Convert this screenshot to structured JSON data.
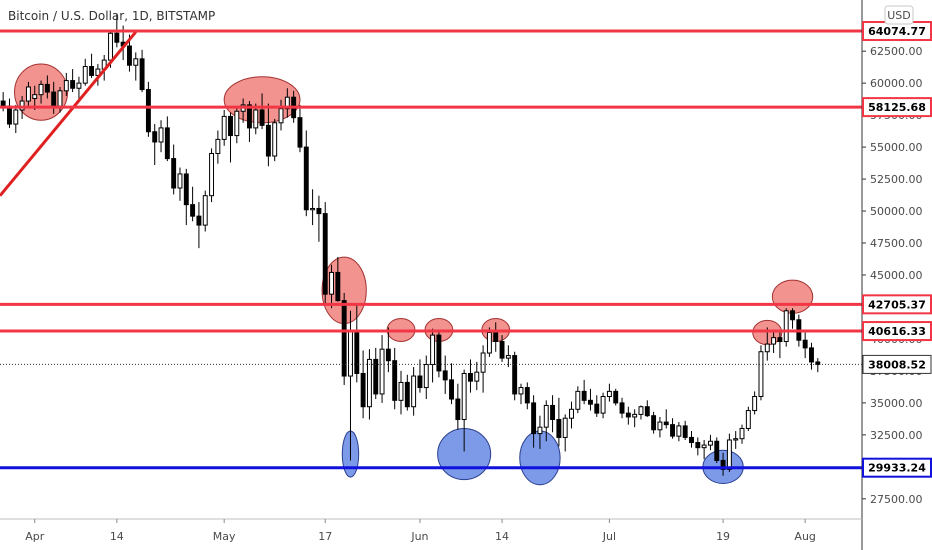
{
  "header": {
    "title": "Bitcoin / U.S. Dollar, 1D, BITSTAMP",
    "currency_button": "USD"
  },
  "chart_data": {
    "type": "candlestick",
    "title": "Bitcoin / U.S. Dollar, 1D, BITSTAMP",
    "ylim": [
      26000,
      66500
    ],
    "y_ticks": [
      27500,
      30000,
      32500,
      35000,
      37500,
      40000,
      42500,
      45000,
      47500,
      50000,
      52500,
      55000,
      57500,
      60000,
      62500
    ],
    "y_tick_labels": [
      "27500.00",
      "30000.00",
      "32500.00",
      "35000.00",
      "37500.00",
      "40000.00",
      "42500.00",
      "45000.00",
      "47500.00",
      "50000.00",
      "52500.00",
      "55000.00",
      "57500.00",
      "60000.00",
      "62500.00"
    ],
    "x_ticks": [
      {
        "label": "Apr",
        "day": 0
      },
      {
        "label": "14",
        "day": 13
      },
      {
        "label": "May",
        "day": 30
      },
      {
        "label": "17",
        "day": 46
      },
      {
        "label": "Jun",
        "day": 61
      },
      {
        "label": "14",
        "day": 74
      },
      {
        "label": "Jul",
        "day": 91
      },
      {
        "label": "19",
        "day": 109
      },
      {
        "label": "Aug",
        "day": 122
      }
    ],
    "x_range": [
      -5.5,
      131
    ],
    "candles": [
      [
        -5,
        58600,
        59300,
        57800,
        58200
      ],
      [
        -4,
        58200,
        58800,
        56500,
        56800
      ],
      [
        -3,
        56800,
        58300,
        56100,
        57900
      ],
      [
        -2,
        57900,
        59000,
        57200,
        58600
      ],
      [
        -1,
        58600,
        60100,
        58100,
        59700
      ],
      [
        0,
        58800,
        59800,
        57900,
        59100
      ],
      [
        1,
        59100,
        60200,
        58400,
        59900
      ],
      [
        2,
        59900,
        60600,
        58800,
        59300
      ],
      [
        3,
        59300,
        60100,
        57600,
        58200
      ],
      [
        4,
        58200,
        59700,
        57700,
        59400
      ],
      [
        5,
        59400,
        60800,
        59000,
        60200
      ],
      [
        6,
        60200,
        61100,
        59300,
        59600
      ],
      [
        7,
        59600,
        60500,
        58500,
        60000
      ],
      [
        8,
        60000,
        61900,
        59800,
        61300
      ],
      [
        9,
        61300,
        62300,
        60400,
        60600
      ],
      [
        10,
        60600,
        61500,
        59800,
        61100
      ],
      [
        11,
        61100,
        62200,
        60200,
        61800
      ],
      [
        12,
        61800,
        64100,
        61200,
        63900
      ],
      [
        13,
        63900,
        65400,
        62800,
        63200
      ],
      [
        14,
        63200,
        64500,
        61800,
        62900
      ],
      [
        15,
        62900,
        63800,
        60900,
        61400
      ],
      [
        16,
        61400,
        62400,
        60200,
        61900
      ],
      [
        17,
        61900,
        62600,
        59300,
        59500
      ],
      [
        18,
        59500,
        60100,
        55800,
        56200
      ],
      [
        19,
        56200,
        56800,
        53600,
        55400
      ],
      [
        20,
        55400,
        57100,
        54600,
        56500
      ],
      [
        21,
        56500,
        57400,
        53900,
        54100
      ],
      [
        22,
        54100,
        55200,
        51300,
        51800
      ],
      [
        23,
        51800,
        53400,
        50800,
        52900
      ],
      [
        24,
        52900,
        53300,
        48900,
        50500
      ],
      [
        25,
        50500,
        51900,
        49200,
        49600
      ],
      [
        26,
        49600,
        50700,
        47100,
        48900
      ],
      [
        27,
        48900,
        51600,
        48400,
        51200
      ],
      [
        28,
        51200,
        54900,
        50700,
        54500
      ],
      [
        29,
        54500,
        56300,
        53700,
        55600
      ],
      [
        30,
        55600,
        57900,
        55100,
        57400
      ],
      [
        31,
        57400,
        57700,
        53800,
        55900
      ],
      [
        32,
        55900,
        58200,
        55300,
        57800
      ],
      [
        33,
        57800,
        58800,
        56900,
        58300
      ],
      [
        34,
        58300,
        58600,
        55400,
        56500
      ],
      [
        35,
        56500,
        58400,
        56000,
        57900
      ],
      [
        36,
        57900,
        59200,
        56400,
        56700
      ],
      [
        37,
        56700,
        58400,
        53500,
        54300
      ],
      [
        38,
        54300,
        57200,
        53900,
        56900
      ],
      [
        39,
        56900,
        58700,
        56300,
        58000
      ],
      [
        40,
        58000,
        59600,
        57300,
        58900
      ],
      [
        41,
        58900,
        59400,
        56900,
        57300
      ],
      [
        42,
        57300,
        58300,
        54600,
        55000
      ],
      [
        43,
        55000,
        56300,
        49600,
        50100
      ],
      [
        44,
        50100,
        51700,
        48900,
        50200
      ],
      [
        45,
        50200,
        51200,
        47600,
        49800
      ],
      [
        46,
        49800,
        50700,
        42800,
        43500
      ],
      [
        47,
        43500,
        45800,
        42400,
        45200
      ],
      [
        48,
        45200,
        46400,
        42900,
        43000
      ],
      [
        49,
        43000,
        43600,
        36400,
        37100
      ],
      [
        50,
        37100,
        42200,
        30500,
        40600
      ],
      [
        51,
        40600,
        42700,
        36600,
        37300
      ],
      [
        52,
        37300,
        39100,
        33800,
        34700
      ],
      [
        53,
        34700,
        39200,
        33700,
        38400
      ],
      [
        54,
        38400,
        39300,
        35300,
        35700
      ],
      [
        55,
        35700,
        40300,
        35000,
        39200
      ],
      [
        56,
        39200,
        40900,
        37400,
        38300
      ],
      [
        57,
        38300,
        39300,
        34500,
        35200
      ],
      [
        58,
        35200,
        37500,
        34100,
        36600
      ],
      [
        59,
        36600,
        37200,
        34400,
        34700
      ],
      [
        60,
        34700,
        37800,
        34000,
        37100
      ],
      [
        61,
        37100,
        38400,
        35800,
        36200
      ],
      [
        62,
        36200,
        38700,
        35300,
        38000
      ],
      [
        63,
        38000,
        40800,
        36600,
        40300
      ],
      [
        64,
        40300,
        40500,
        37000,
        37500
      ],
      [
        65,
        37500,
        38700,
        35700,
        36800
      ],
      [
        66,
        36800,
        38100,
        34900,
        35300
      ],
      [
        67,
        35300,
        36500,
        32900,
        33700
      ],
      [
        68,
        33700,
        37600,
        31200,
        37300
      ],
      [
        69,
        37300,
        38400,
        35800,
        36700
      ],
      [
        70,
        36700,
        38200,
        36000,
        37400
      ],
      [
        71,
        37400,
        39500,
        35800,
        38900
      ],
      [
        72,
        38900,
        40900,
        38600,
        40500
      ],
      [
        73,
        40500,
        41300,
        39000,
        39800
      ],
      [
        74,
        39800,
        40300,
        38200,
        38500
      ],
      [
        75,
        38500,
        39500,
        37800,
        38700
      ],
      [
        76,
        38700,
        39000,
        35200,
        35700
      ],
      [
        77,
        35700,
        36500,
        34900,
        36200
      ],
      [
        78,
        36200,
        36600,
        34500,
        35000
      ],
      [
        79,
        35000,
        35600,
        31500,
        32600
      ],
      [
        80,
        32600,
        34000,
        31400,
        33100
      ],
      [
        81,
        33100,
        35200,
        32000,
        34800
      ],
      [
        82,
        34800,
        35600,
        32700,
        33700
      ],
      [
        83,
        33700,
        35400,
        31600,
        32300
      ],
      [
        84,
        32300,
        34100,
        31200,
        33800
      ],
      [
        85,
        33800,
        35100,
        33000,
        34500
      ],
      [
        86,
        34500,
        36300,
        34200,
        35900
      ],
      [
        87,
        35900,
        36800,
        34900,
        35200
      ],
      [
        88,
        35200,
        36100,
        34400,
        34900
      ],
      [
        89,
        34900,
        35600,
        33900,
        34200
      ],
      [
        90,
        34200,
        35800,
        33800,
        35500
      ],
      [
        91,
        35500,
        36500,
        35100,
        35900
      ],
      [
        92,
        35900,
        36100,
        34800,
        35000
      ],
      [
        93,
        35000,
        35400,
        33800,
        34200
      ],
      [
        94,
        34200,
        34700,
        33300,
        33900
      ],
      [
        95,
        33900,
        34500,
        33100,
        34100
      ],
      [
        96,
        34100,
        34800,
        33700,
        34700
      ],
      [
        97,
        34700,
        35200,
        33900,
        34000
      ],
      [
        98,
        34000,
        34300,
        32600,
        32900
      ],
      [
        99,
        32900,
        33900,
        32300,
        33500
      ],
      [
        100,
        33500,
        34500,
        33000,
        33300
      ],
      [
        101,
        33300,
        33800,
        32200,
        32400
      ],
      [
        102,
        32400,
        33500,
        32000,
        33200
      ],
      [
        103,
        33200,
        33600,
        32100,
        32300
      ],
      [
        104,
        32300,
        32800,
        31500,
        31900
      ],
      [
        105,
        31900,
        32300,
        30900,
        31500
      ],
      [
        106,
        31500,
        32100,
        30600,
        31700
      ],
      [
        107,
        31700,
        32500,
        31300,
        32000
      ],
      [
        108,
        32000,
        32300,
        30300,
        30500
      ],
      [
        109,
        30500,
        31100,
        29300,
        29800
      ],
      [
        110,
        29800,
        32600,
        29600,
        32100
      ],
      [
        111,
        32100,
        32800,
        31400,
        32200
      ],
      [
        112,
        32200,
        33300,
        31800,
        33000
      ],
      [
        113,
        33000,
        34700,
        32800,
        34400
      ],
      [
        114,
        34400,
        35900,
        34100,
        35500
      ],
      [
        115,
        35500,
        39500,
        35200,
        39000
      ],
      [
        116,
        39000,
        40900,
        38300,
        39600
      ],
      [
        117,
        39600,
        40600,
        38900,
        40100
      ],
      [
        118,
        40100,
        40700,
        38500,
        39800
      ],
      [
        119,
        39800,
        42400,
        39400,
        42200
      ],
      [
        120,
        42200,
        42400,
        40800,
        41500
      ],
      [
        121,
        41500,
        41900,
        39400,
        39900
      ],
      [
        122,
        39900,
        40500,
        38500,
        39300
      ],
      [
        123,
        39300,
        39700,
        37600,
        38200
      ],
      [
        124,
        38200,
        38500,
        37400,
        38000
      ]
    ],
    "horizontal_levels": [
      {
        "value": 64074.77,
        "label": "64074.77",
        "color": "#f23645"
      },
      {
        "value": 58125.68,
        "label": "58125.68",
        "color": "#f23645"
      },
      {
        "value": 42705.37,
        "label": "42705.37",
        "color": "#f23645"
      },
      {
        "value": 40616.33,
        "label": "40616.33",
        "color": "#f23645"
      },
      {
        "value": 29933.24,
        "label": "29933.24",
        "color": "#1111dd"
      }
    ],
    "last_price": {
      "value": 38008.52,
      "label": "38008.52"
    },
    "trendline": {
      "from": {
        "day": -5.5,
        "price": 51200
      },
      "to": {
        "day": 16,
        "price": 64000
      },
      "color": "#e02020"
    },
    "resistance_circles": [
      {
        "day": 1,
        "price": 59300,
        "rx_days": 4.2,
        "ry_price": 2200
      },
      {
        "day": 36,
        "price": 58700,
        "rx_days": 6.0,
        "ry_price": 1800
      },
      {
        "day": 49,
        "price": 43800,
        "rx_days": 3.5,
        "ry_price": 2600
      },
      {
        "day": 58,
        "price": 40700,
        "rx_days": 2.2,
        "ry_price": 900
      },
      {
        "day": 64,
        "price": 40700,
        "rx_days": 2.2,
        "ry_price": 900
      },
      {
        "day": 73,
        "price": 40700,
        "rx_days": 2.2,
        "ry_price": 900
      },
      {
        "day": 120,
        "price": 43300,
        "rx_days": 3.2,
        "ry_price": 1300
      },
      {
        "day": 116,
        "price": 40500,
        "rx_days": 2.3,
        "ry_price": 950
      }
    ],
    "support_circles": [
      {
        "day": 50,
        "price": 31000,
        "rx_days": 1.3,
        "ry_price": 1800
      },
      {
        "day": 68,
        "price": 31000,
        "rx_days": 4.2,
        "ry_price": 2000
      },
      {
        "day": 80,
        "price": 30700,
        "rx_days": 3.2,
        "ry_price": 2100
      },
      {
        "day": 109,
        "price": 30000,
        "rx_days": 3.2,
        "ry_price": 1300
      }
    ],
    "colors": {
      "up_body": "#ffffff",
      "down_body": "#000000",
      "wick": "#000000",
      "resistance_fill": "#f0807b",
      "resistance_stroke": "#a33030",
      "support_fill": "#6e8fe6",
      "support_stroke": "#2a3f8f",
      "axis_line": "#333333",
      "last_price_label_bg": "#ffffff",
      "level_label_bg": "#ffffff"
    }
  }
}
